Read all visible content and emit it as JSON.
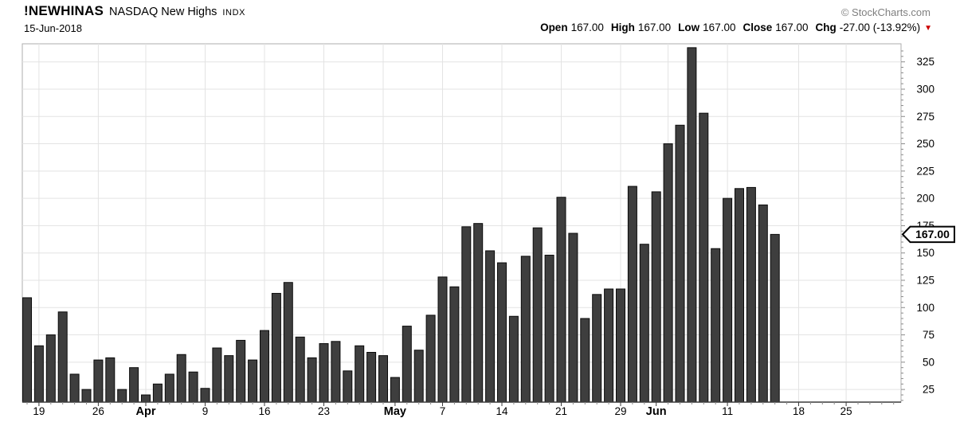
{
  "header": {
    "symbol": "!NEWHINAS",
    "name": "NASDAQ New Highs",
    "exchange": "INDX",
    "date": "15-Jun-2018",
    "copyright": "© StockCharts.com",
    "quote": {
      "open_label": "Open",
      "open_value": "167.00",
      "high_label": "High",
      "high_value": "167.00",
      "low_label": "Low",
      "low_value": "167.00",
      "close_label": "Close",
      "close_value": "167.00",
      "chg_label": "Chg",
      "chg_value": "-27.00 (-13.92%)",
      "down_arrow": "▼"
    }
  },
  "chart_data": {
    "type": "bar",
    "title": "!NEWHINAS NASDAQ New Highs INDX",
    "x": [
      "Mar 16",
      "Mar 19",
      "Mar 20",
      "Mar 21",
      "Mar 22",
      "Mar 23",
      "Mar 26",
      "Mar 27",
      "Mar 28",
      "Mar 29",
      "Apr 2",
      "Apr 3",
      "Apr 4",
      "Apr 5",
      "Apr 6",
      "Apr 9",
      "Apr 10",
      "Apr 11",
      "Apr 12",
      "Apr 13",
      "Apr 16",
      "Apr 17",
      "Apr 18",
      "Apr 19",
      "Apr 20",
      "Apr 23",
      "Apr 24",
      "Apr 25",
      "Apr 26",
      "Apr 27",
      "Apr 30",
      "May 1",
      "May 2",
      "May 3",
      "May 4",
      "May 7",
      "May 8",
      "May 9",
      "May 10",
      "May 11",
      "May 14",
      "May 15",
      "May 16",
      "May 17",
      "May 18",
      "May 21",
      "May 22",
      "May 23",
      "May 24",
      "May 25",
      "May 29",
      "May 30",
      "May 31",
      "Jun 1",
      "Jun 4",
      "Jun 5",
      "Jun 6",
      "Jun 7",
      "Jun 8",
      "Jun 11",
      "Jun 12",
      "Jun 13",
      "Jun 14",
      "Jun 15"
    ],
    "values": [
      109,
      65,
      75,
      96,
      39,
      25,
      52,
      54,
      25,
      45,
      20,
      30,
      39,
      57,
      41,
      26,
      63,
      56,
      70,
      52,
      79,
      113,
      123,
      73,
      54,
      67,
      69,
      42,
      65,
      59,
      56,
      36,
      83,
      61,
      93,
      128,
      119,
      174,
      177,
      152,
      141,
      92,
      147,
      173,
      148,
      201,
      168,
      90,
      112,
      117,
      117,
      211,
      158,
      206,
      250,
      267,
      338,
      278,
      154,
      200,
      209,
      210,
      194,
      167
    ],
    "ylim": [
      0,
      340
    ],
    "y_ticks": [
      25,
      50,
      75,
      100,
      125,
      150,
      175,
      200,
      225,
      250,
      275,
      300,
      325
    ],
    "x_ticks": [
      {
        "label": "19",
        "index": 1,
        "bold": false
      },
      {
        "label": "26",
        "index": 6,
        "bold": false
      },
      {
        "label": "Apr",
        "index": 10,
        "bold": true
      },
      {
        "label": "9",
        "index": 15,
        "bold": false
      },
      {
        "label": "16",
        "index": 20,
        "bold": false
      },
      {
        "label": "23",
        "index": 25,
        "bold": false
      },
      {
        "label": "May",
        "index": 31,
        "bold": true
      },
      {
        "label": "7",
        "index": 35,
        "bold": false
      },
      {
        "label": "14",
        "index": 40,
        "bold": false
      },
      {
        "label": "21",
        "index": 45,
        "bold": false
      },
      {
        "label": "29",
        "index": 50,
        "bold": false
      },
      {
        "label": "Jun",
        "index": 53,
        "bold": true
      },
      {
        "label": "11",
        "index": 59,
        "bold": false
      },
      {
        "label": "18",
        "index": 65,
        "bold": false
      },
      {
        "label": "25",
        "index": 69,
        "bold": false
      }
    ],
    "week_gridline_indices": [
      1,
      6,
      10,
      15,
      20,
      25,
      30,
      35,
      40,
      45,
      50,
      54,
      59,
      65,
      69
    ],
    "last_price_tag": "167.00",
    "last_price_value": 167,
    "grid_on": true,
    "legend": "none",
    "colors": {
      "bar_fill": "#3e3e3e",
      "bar_border": "#0a0a0a",
      "grid": "#e3e3e3",
      "plot_border": "#adadad",
      "axis_line": "#3c3c3c",
      "minor_tick": "#8a8a8a",
      "label_text": "#000000",
      "tag_border": "#000000",
      "tag_fill": "#ffffff",
      "down_red": "#cc0000"
    }
  }
}
